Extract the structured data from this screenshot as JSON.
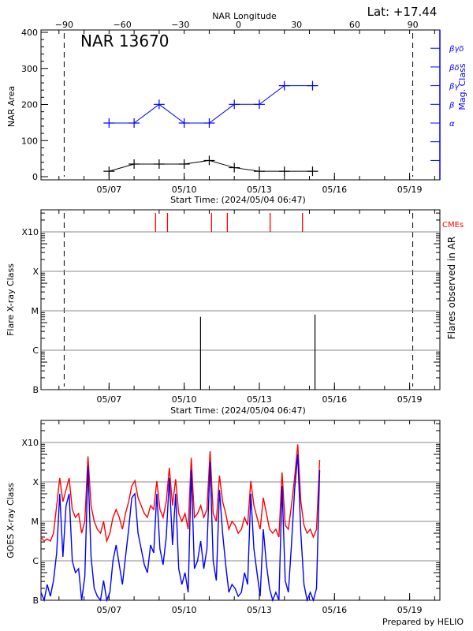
{
  "chart_data": [
    {
      "type": "line",
      "title": "NAR 13670",
      "corner_label": "Lat: +17.44",
      "top_axis_label": "NAR Longitude",
      "top_axis_ticks": [
        -90,
        -60,
        -30,
        0,
        30,
        60,
        90
      ],
      "xlabel": "Start Time: (2024/05/04 06:47)",
      "xlim": [
        "2024-05-04T06:47",
        "2024-05-20T05:00"
      ],
      "x_tick_labels": [
        {
          "date": "2024-05-07T00:00",
          "label": "05/07"
        },
        {
          "date": "2024-05-10T00:00",
          "label": "05/10"
        },
        {
          "date": "2024-05-13T00:00",
          "label": "05/13"
        },
        {
          "date": "2024-05-16T00:00",
          "label": "05/16"
        },
        {
          "date": "2024-05-19T00:00",
          "label": "05/19"
        }
      ],
      "ylabel": "NAR Area",
      "ylim": [
        0,
        400
      ],
      "y_ticks": [
        0,
        100,
        200,
        300,
        400
      ],
      "y2label": "Mag. Class",
      "y2_tick_labels": [
        "α",
        "β",
        "βγ",
        "βδ",
        "βγδ"
      ],
      "limb_markers": [
        "2024-05-05T05:00",
        "2024-05-19T03:00"
      ],
      "x": [
        "2024-05-07T00:00",
        "2024-05-08T00:00",
        "2024-05-09T00:00",
        "2024-05-10T00:00",
        "2024-05-11T00:00",
        "2024-05-12T00:00",
        "2024-05-13T00:00",
        "2024-05-14T00:00",
        "2024-05-15T03:00"
      ],
      "series": [
        {
          "axis": "left",
          "color": "#000000",
          "values": [
            15,
            35,
            35,
            35,
            45,
            25,
            15,
            15,
            15
          ]
        },
        {
          "axis": "right",
          "color": "#0000ff",
          "values": [
            "α",
            "α",
            "β",
            "α",
            "α",
            "β",
            "β",
            "βγ",
            "βγ"
          ]
        }
      ]
    },
    {
      "type": "bar",
      "xlabel": "Start Time: (2024/05/04 06:47)",
      "ylabel": "Flare X-ray Class",
      "y2label": "Flares observed in AR",
      "y_tick_labels": [
        "B",
        "C",
        "M",
        "X",
        "X10"
      ],
      "grid": true,
      "cme_label": "CMEs",
      "cme_color": "#ff0000",
      "cmes": [
        "2024-05-08T20:30",
        "2024-05-09T08:00",
        "2024-05-11T02:10",
        "2024-05-11T17:20",
        "2024-05-13T10:20",
        "2024-05-14T17:20"
      ],
      "flares": [
        {
          "time": "2024-05-10T15:40",
          "class": "C7.0"
        },
        {
          "time": "2024-05-15T05:20",
          "class": "C8.0"
        }
      ]
    },
    {
      "type": "line",
      "ylabel": "GOES X-ray Class",
      "y_tick_labels": [
        "B",
        "C",
        "M",
        "X",
        "X10"
      ],
      "grid": true,
      "footer": "Prepared by HELIO",
      "start": "2024-05-04T06:47",
      "step_hours": 3,
      "series": [
        {
          "color": "#ff0000",
          "log_flux": [
            -5.4,
            -5.5,
            -5.45,
            -5.5,
            -5.3,
            -4.6,
            -3.9,
            -4.5,
            -4.2,
            -3.9,
            -4.7,
            -4.9,
            -4.8,
            -5.3,
            -5.0,
            -3.35,
            -4.6,
            -5.0,
            -5.2,
            -5.3,
            -5.0,
            -5.5,
            -5.3,
            -4.9,
            -4.7,
            -4.9,
            -5.2,
            -4.8,
            -4.5,
            -4.1,
            -3.97,
            -4.4,
            -4.6,
            -4.8,
            -4.9,
            -4.6,
            -4.7,
            -3.98,
            -4.7,
            -4.9,
            -4.5,
            -3.64,
            -4.6,
            -3.93,
            -4.8,
            -5.0,
            -4.8,
            -5.2,
            -3.39,
            -4.9,
            -4.8,
            -4.6,
            -4.9,
            -4.7,
            -3.22,
            -4.8,
            -5.0,
            -3.84,
            -4.5,
            -4.8,
            -5.2,
            -5.0,
            -5.1,
            -5.3,
            -5.2,
            -4.9,
            -5.1,
            -3.98,
            -4.6,
            -4.9,
            -5.2,
            -4.4,
            -4.8,
            -5.2,
            -5.3,
            -5.2,
            -5.4,
            -3.76,
            -5.1,
            -5.2,
            -4.6,
            -3.9,
            -3.05,
            -4.5,
            -5.1,
            -5.3,
            -5.2,
            -5.4,
            -5.2,
            -3.44
          ]
        },
        {
          "color": "#0000ff",
          "log_flux": [
            -6.8,
            -7.0,
            -6.6,
            -6.9,
            -6.5,
            -5.8,
            -4.3,
            -5.9,
            -4.6,
            -4.3,
            -6.0,
            -6.3,
            -6.2,
            -7.0,
            -6.4,
            -3.6,
            -5.9,
            -6.7,
            -6.9,
            -7.0,
            -6.5,
            -7.0,
            -6.8,
            -6.0,
            -5.6,
            -6.1,
            -6.6,
            -5.9,
            -5.2,
            -4.4,
            -4.3,
            -5.3,
            -5.7,
            -6.1,
            -6.3,
            -5.6,
            -5.8,
            -4.3,
            -5.7,
            -6.1,
            -5.4,
            -3.9,
            -5.6,
            -4.3,
            -6.2,
            -6.6,
            -6.3,
            -6.8,
            -3.7,
            -6.2,
            -6.0,
            -5.5,
            -6.2,
            -5.7,
            -3.5,
            -6.0,
            -6.5,
            -4.2,
            -5.3,
            -6.1,
            -6.8,
            -6.6,
            -6.7,
            -6.9,
            -6.8,
            -6.3,
            -6.6,
            -4.3,
            -5.7,
            -6.3,
            -6.9,
            -5.2,
            -6.1,
            -6.7,
            -7.0,
            -6.8,
            -7.0,
            -4.1,
            -6.5,
            -6.8,
            -5.6,
            -4.2,
            -3.3,
            -5.3,
            -6.6,
            -7.0,
            -6.8,
            -7.0,
            -6.7,
            -3.7
          ]
        }
      ]
    }
  ]
}
